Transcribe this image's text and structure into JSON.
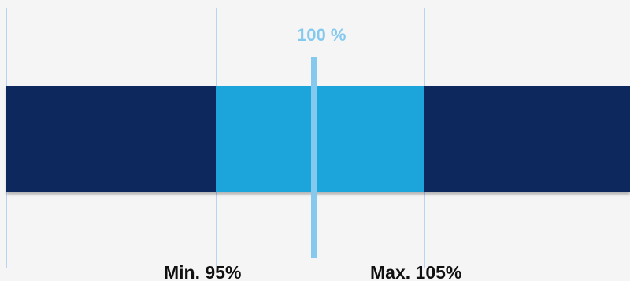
{
  "diagram": {
    "target_label": "100 %",
    "min_label": "Min. 95%",
    "max_label": "Max. 105%",
    "colors": {
      "background": "#f5f5f5",
      "outer_band": "#0d285c",
      "tolerance_band": "#1ba5da",
      "target_marker": "#86c9ef",
      "guide_lines": "#b9d3f2",
      "bound_text": "#111111"
    }
  }
}
